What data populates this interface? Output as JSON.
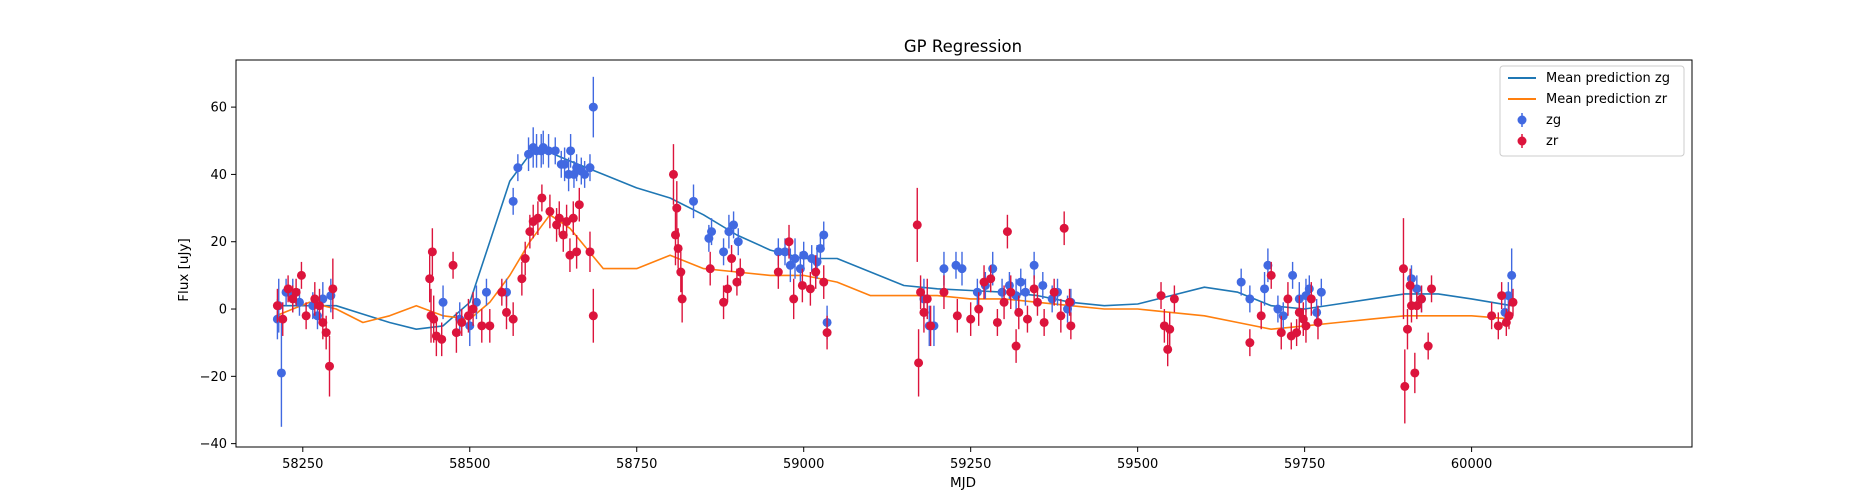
{
  "chart_data": {
    "type": "scatter",
    "title": "GP Regression",
    "xlabel": "MJD",
    "ylabel": "Flux [uJy]",
    "xlim": [
      58150,
      60330
    ],
    "ylim": [
      -41,
      74
    ],
    "xticks": [
      58250,
      58500,
      58750,
      59000,
      59250,
      59500,
      59750,
      60000
    ],
    "yticks": [
      -40,
      -20,
      0,
      20,
      40,
      60
    ],
    "grid": false,
    "legend_position": "top-right",
    "lines": [
      {
        "name": "Mean prediction zg",
        "color": "#1f77b4",
        "x": [
          58210,
          58260,
          58300,
          58340,
          58380,
          58420,
          58460,
          58500,
          58530,
          58560,
          58590,
          58620,
          58650,
          58700,
          58750,
          58800,
          58850,
          58900,
          58950,
          59000,
          59050,
          59100,
          59150,
          59200,
          59250,
          59300,
          59350,
          59400,
          59450,
          59500,
          59550,
          59600,
          59650,
          59700,
          59750,
          59800,
          59850,
          59900,
          59950,
          60000,
          60060
        ],
        "y": [
          1,
          1,
          1,
          -1.5,
          -4,
          -6,
          -5,
          2,
          20,
          38,
          46,
          46.5,
          44,
          40,
          36,
          33,
          28,
          22,
          17.5,
          15,
          15,
          11,
          7,
          6,
          5.5,
          5,
          4,
          2,
          1,
          1.5,
          4,
          6.5,
          5,
          1,
          0,
          1.5,
          3,
          4.5,
          4.5,
          3,
          1
        ]
      },
      {
        "name": "Mean prediction zr",
        "color": "#ff7f0e",
        "x": [
          58210,
          58260,
          58300,
          58340,
          58380,
          58420,
          58460,
          58500,
          58530,
          58560,
          58590,
          58620,
          58650,
          58700,
          58750,
          58800,
          58850,
          58900,
          58950,
          59000,
          59050,
          59100,
          59150,
          59200,
          59250,
          59300,
          59350,
          59400,
          59450,
          59500,
          59550,
          59600,
          59650,
          59700,
          59750,
          59800,
          59850,
          59900,
          59950,
          60000,
          60060
        ],
        "y": [
          -2,
          2,
          0,
          -4,
          -2,
          1,
          -2,
          -3,
          2,
          10,
          20,
          28,
          24,
          12,
          12,
          16,
          12,
          11,
          10,
          10,
          8,
          4,
          4,
          4,
          3,
          3,
          2,
          1,
          0,
          0,
          -1,
          -2,
          -4,
          -6,
          -5,
          -4,
          -3,
          -2,
          -2,
          -2,
          -3
        ]
      }
    ],
    "series": [
      {
        "name": "zg",
        "color": "#4169e1",
        "points": [
          [
            58212,
            -3,
            6
          ],
          [
            58214,
            1,
            8
          ],
          [
            58218,
            -19,
            16
          ],
          [
            58225,
            5,
            4
          ],
          [
            58235,
            4,
            5
          ],
          [
            58245,
            2,
            4
          ],
          [
            58265,
            1,
            4
          ],
          [
            58272,
            -2,
            4
          ],
          [
            58280,
            3,
            5
          ],
          [
            58292,
            4,
            5
          ],
          [
            58460,
            2,
            5
          ],
          [
            58485,
            -3,
            5
          ],
          [
            58500,
            -5,
            6
          ],
          [
            58510,
            2,
            5
          ],
          [
            58525,
            5,
            4
          ],
          [
            58555,
            5,
            4
          ],
          [
            58565,
            32,
            4
          ],
          [
            58572,
            42,
            4
          ],
          [
            58588,
            46,
            5
          ],
          [
            58595,
            48,
            6
          ],
          [
            58600,
            47,
            5
          ],
          [
            58607,
            47,
            5
          ],
          [
            58610,
            48,
            5
          ],
          [
            58618,
            47,
            5
          ],
          [
            58628,
            47,
            4
          ],
          [
            58637,
            43,
            4
          ],
          [
            58642,
            43,
            5
          ],
          [
            58648,
            40,
            5
          ],
          [
            58651,
            47,
            5
          ],
          [
            58656,
            40,
            4
          ],
          [
            58660,
            42,
            4
          ],
          [
            58667,
            41,
            4
          ],
          [
            58672,
            40,
            4
          ],
          [
            58680,
            42,
            4
          ],
          [
            58685,
            60,
            9
          ],
          [
            58835,
            32,
            5
          ],
          [
            58858,
            21,
            4
          ],
          [
            58862,
            23,
            4
          ],
          [
            58880,
            17,
            4
          ],
          [
            58888,
            23,
            5
          ],
          [
            58895,
            25,
            4
          ],
          [
            58902,
            20,
            4
          ],
          [
            58962,
            17,
            4
          ],
          [
            58972,
            17,
            4
          ],
          [
            58980,
            13,
            5
          ],
          [
            58987,
            15,
            6
          ],
          [
            58995,
            12,
            5
          ],
          [
            59000,
            16,
            4
          ],
          [
            59012,
            15,
            4
          ],
          [
            59020,
            14,
            5
          ],
          [
            59025,
            18,
            4
          ],
          [
            59030,
            22,
            4
          ],
          [
            59035,
            -4,
            5
          ],
          [
            59180,
            3,
            6
          ],
          [
            59188,
            -5,
            6
          ],
          [
            59195,
            -5,
            6
          ],
          [
            59210,
            12,
            5
          ],
          [
            59228,
            13,
            4
          ],
          [
            59237,
            12,
            5
          ],
          [
            59260,
            5,
            4
          ],
          [
            59272,
            7,
            4
          ],
          [
            59283,
            12,
            5
          ],
          [
            59297,
            5,
            4
          ],
          [
            59308,
            7,
            4
          ],
          [
            59318,
            4,
            5
          ],
          [
            59325,
            8,
            4
          ],
          [
            59332,
            5,
            4
          ],
          [
            59345,
            13,
            4
          ],
          [
            59358,
            7,
            4
          ],
          [
            59372,
            3,
            4
          ],
          [
            59380,
            5,
            4
          ],
          [
            59395,
            0,
            4
          ],
          [
            59400,
            2,
            4
          ],
          [
            59655,
            8,
            4
          ],
          [
            59668,
            3,
            4
          ],
          [
            59690,
            6,
            5
          ],
          [
            59695,
            13,
            5
          ],
          [
            59710,
            0,
            4
          ],
          [
            59718,
            -2,
            4
          ],
          [
            59732,
            10,
            4
          ],
          [
            59742,
            3,
            5
          ],
          [
            59752,
            4,
            5
          ],
          [
            59757,
            6,
            4
          ],
          [
            59768,
            -1,
            4
          ],
          [
            59775,
            5,
            4
          ],
          [
            59910,
            9,
            4
          ],
          [
            59918,
            6,
            4
          ],
          [
            59925,
            3,
            4
          ],
          [
            60050,
            -1,
            4
          ],
          [
            60055,
            4,
            4
          ],
          [
            60060,
            10,
            8
          ]
        ]
      },
      {
        "name": "zr",
        "color": "#dc143c",
        "points": [
          [
            58212,
            1,
            5
          ],
          [
            58220,
            -3,
            5
          ],
          [
            58228,
            6,
            4
          ],
          [
            58235,
            3,
            4
          ],
          [
            58240,
            5,
            4
          ],
          [
            58248,
            10,
            4
          ],
          [
            58255,
            -2,
            4
          ],
          [
            58268,
            3,
            5
          ],
          [
            58275,
            1,
            5
          ],
          [
            58280,
            -4,
            5
          ],
          [
            58285,
            -7,
            5
          ],
          [
            58290,
            -17,
            9
          ],
          [
            58295,
            6,
            9
          ],
          [
            58440,
            9,
            7
          ],
          [
            58442,
            -2,
            8
          ],
          [
            58444,
            17,
            7
          ],
          [
            58446,
            -3,
            7
          ],
          [
            58450,
            -8,
            6
          ],
          [
            58458,
            -9,
            5
          ],
          [
            58475,
            13,
            4
          ],
          [
            58480,
            -7,
            6
          ],
          [
            58488,
            -4,
            4
          ],
          [
            58498,
            -2,
            5
          ],
          [
            58505,
            0,
            5
          ],
          [
            58518,
            -5,
            5
          ],
          [
            58530,
            -5,
            5
          ],
          [
            58548,
            5,
            4
          ],
          [
            58555,
            -1,
            5
          ],
          [
            58565,
            -3,
            5
          ],
          [
            58578,
            9,
            5
          ],
          [
            58583,
            15,
            5
          ],
          [
            58590,
            23,
            5
          ],
          [
            58595,
            26,
            5
          ],
          [
            58602,
            27,
            5
          ],
          [
            58608,
            33,
            4
          ],
          [
            58620,
            29,
            5
          ],
          [
            58630,
            25,
            5
          ],
          [
            58634,
            27,
            5
          ],
          [
            58640,
            22,
            5
          ],
          [
            58645,
            26,
            5
          ],
          [
            58650,
            16,
            5
          ],
          [
            58655,
            27,
            5
          ],
          [
            58660,
            17,
            5
          ],
          [
            58664,
            31,
            5
          ],
          [
            58680,
            17,
            6
          ],
          [
            58685,
            -2,
            8
          ],
          [
            58805,
            40,
            9
          ],
          [
            58808,
            22,
            9
          ],
          [
            58810,
            30,
            8
          ],
          [
            58812,
            18,
            6
          ],
          [
            58816,
            11,
            6
          ],
          [
            58818,
            3,
            7
          ],
          [
            58860,
            12,
            5
          ],
          [
            58880,
            2,
            5
          ],
          [
            58886,
            6,
            4
          ],
          [
            58892,
            15,
            4
          ],
          [
            58900,
            8,
            4
          ],
          [
            58905,
            11,
            4
          ],
          [
            58962,
            11,
            5
          ],
          [
            58978,
            20,
            5
          ],
          [
            58985,
            3,
            6
          ],
          [
            58998,
            7,
            5
          ],
          [
            59010,
            6,
            5
          ],
          [
            59018,
            11,
            5
          ],
          [
            59030,
            8,
            5
          ],
          [
            59035,
            -7,
            5
          ],
          [
            59170,
            25,
            11
          ],
          [
            59172,
            -16,
            10
          ],
          [
            59175,
            5,
            5
          ],
          [
            59180,
            -1,
            6
          ],
          [
            59185,
            3,
            6
          ],
          [
            59190,
            -5,
            6
          ],
          [
            59210,
            5,
            5
          ],
          [
            59230,
            -2,
            5
          ],
          [
            59250,
            -3,
            5
          ],
          [
            59262,
            0,
            5
          ],
          [
            59270,
            8,
            5
          ],
          [
            59280,
            9,
            4
          ],
          [
            59290,
            -4,
            4
          ],
          [
            59300,
            2,
            5
          ],
          [
            59305,
            23,
            5
          ],
          [
            59310,
            5,
            5
          ],
          [
            59318,
            -11,
            5
          ],
          [
            59322,
            -1,
            5
          ],
          [
            59335,
            -3,
            4
          ],
          [
            59345,
            6,
            4
          ],
          [
            59350,
            2,
            4
          ],
          [
            59360,
            -4,
            4
          ],
          [
            59375,
            5,
            4
          ],
          [
            59385,
            -2,
            5
          ],
          [
            59390,
            24,
            5
          ],
          [
            59398,
            2,
            4
          ],
          [
            59400,
            -5,
            4
          ],
          [
            59535,
            4,
            4
          ],
          [
            59540,
            -5,
            5
          ],
          [
            59545,
            -12,
            5
          ],
          [
            59548,
            -6,
            5
          ],
          [
            59555,
            3,
            4
          ],
          [
            59668,
            -10,
            4
          ],
          [
            59685,
            -2,
            4
          ],
          [
            59700,
            10,
            4
          ],
          [
            59715,
            -7,
            5
          ],
          [
            59725,
            3,
            5
          ],
          [
            59730,
            -8,
            4
          ],
          [
            59738,
            -7,
            4
          ],
          [
            59742,
            -1,
            5
          ],
          [
            59748,
            -3,
            5
          ],
          [
            59752,
            -5,
            5
          ],
          [
            59760,
            3,
            5
          ],
          [
            59770,
            -4,
            5
          ],
          [
            59898,
            12,
            15
          ],
          [
            59900,
            -23,
            11
          ],
          [
            59904,
            -6,
            6
          ],
          [
            59908,
            7,
            5
          ],
          [
            59910,
            1,
            5
          ],
          [
            59915,
            -19,
            6
          ],
          [
            59918,
            1,
            4
          ],
          [
            59925,
            3,
            4
          ],
          [
            59935,
            -11,
            4
          ],
          [
            59940,
            6,
            4
          ],
          [
            60030,
            -2,
            4
          ],
          [
            60040,
            -5,
            4
          ],
          [
            60045,
            4,
            4
          ],
          [
            60052,
            -4,
            4
          ],
          [
            60056,
            -2,
            4
          ],
          [
            60062,
            2,
            4
          ]
        ]
      }
    ]
  }
}
